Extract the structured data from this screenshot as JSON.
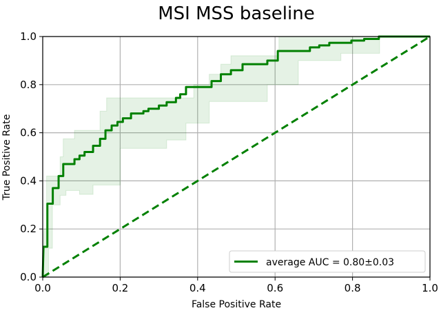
{
  "chart_data": {
    "type": "line",
    "title": "MSI MSS baseline",
    "xlabel": "False Positive Rate",
    "ylabel": "True Positive Rate",
    "xlim": [
      0,
      1
    ],
    "ylim": [
      0,
      1
    ],
    "xticks": [
      "0.0",
      "0.2",
      "0.4",
      "0.6",
      "0.8",
      "1.0"
    ],
    "yticks": [
      "0.0",
      "0.2",
      "0.4",
      "0.6",
      "0.8",
      "1.0"
    ],
    "grid": true,
    "legend": {
      "position": "bottom-right",
      "entries": [
        "average AUC = 0.80±0.03"
      ]
    },
    "colors": {
      "line": "#008000",
      "band": "#008000"
    },
    "series": [
      {
        "name": "average AUC = 0.80±0.03",
        "style": "solid",
        "x": [
          0,
          0.002,
          0.012,
          0.012,
          0.026,
          0.026,
          0.041,
          0.041,
          0.053,
          0.053,
          0.082,
          0.082,
          0.095,
          0.095,
          0.108,
          0.108,
          0.13,
          0.13,
          0.148,
          0.148,
          0.162,
          0.162,
          0.178,
          0.178,
          0.193,
          0.193,
          0.207,
          0.207,
          0.228,
          0.228,
          0.26,
          0.26,
          0.273,
          0.273,
          0.3,
          0.3,
          0.32,
          0.32,
          0.344,
          0.344,
          0.355,
          0.355,
          0.37,
          0.37,
          0.436,
          0.436,
          0.46,
          0.46,
          0.486,
          0.486,
          0.516,
          0.516,
          0.58,
          0.58,
          0.607,
          0.607,
          0.69,
          0.69,
          0.714,
          0.714,
          0.74,
          0.74,
          0.797,
          0.797,
          0.83,
          0.83,
          0.868,
          0.868,
          1.0
        ],
        "y": [
          0,
          0.126,
          0.126,
          0.305,
          0.305,
          0.37,
          0.37,
          0.42,
          0.42,
          0.47,
          0.47,
          0.49,
          0.49,
          0.505,
          0.505,
          0.52,
          0.52,
          0.546,
          0.546,
          0.575,
          0.575,
          0.61,
          0.61,
          0.63,
          0.63,
          0.645,
          0.645,
          0.66,
          0.66,
          0.68,
          0.68,
          0.69,
          0.69,
          0.7,
          0.7,
          0.713,
          0.713,
          0.727,
          0.727,
          0.745,
          0.745,
          0.76,
          0.76,
          0.79,
          0.79,
          0.815,
          0.815,
          0.843,
          0.843,
          0.86,
          0.86,
          0.885,
          0.885,
          0.9,
          0.9,
          0.94,
          0.94,
          0.955,
          0.955,
          0.963,
          0.963,
          0.974,
          0.974,
          0.983,
          0.983,
          0.99,
          0.99,
          1.0,
          1.0
        ]
      },
      {
        "name": "chance",
        "style": "dashed",
        "x": [
          0,
          1
        ],
        "y": [
          0,
          1
        ]
      }
    ],
    "band": {
      "upper": {
        "x": [
          0,
          0.003,
          0.01,
          0.01,
          0.045,
          0.045,
          0.053,
          0.053,
          0.082,
          0.082,
          0.148,
          0.148,
          0.165,
          0.165,
          0.38,
          0.39,
          0.39,
          0.43,
          0.43,
          0.46,
          0.46,
          0.486,
          0.486,
          0.61,
          0.61,
          1.0
        ],
        "y": [
          0,
          0.2,
          0.2,
          0.42,
          0.42,
          0.5,
          0.5,
          0.575,
          0.575,
          0.61,
          0.61,
          0.69,
          0.69,
          0.745,
          0.745,
          0.745,
          0.8,
          0.8,
          0.843,
          0.843,
          0.885,
          0.885,
          0.92,
          0.92,
          1.0,
          1.0
        ]
      },
      "lower": {
        "x": [
          0,
          0.01,
          0.015,
          0.015,
          0.025,
          0.025,
          0.045,
          0.045,
          0.06,
          0.06,
          0.095,
          0.095,
          0.13,
          0.13,
          0.2,
          0.2,
          0.32,
          0.32,
          0.37,
          0.37,
          0.43,
          0.43,
          0.58,
          0.58,
          0.66,
          0.66,
          0.77,
          0.77,
          0.87,
          0.87,
          1.0
        ],
        "y": [
          0,
          0,
          0,
          0.12,
          0.12,
          0.3,
          0.3,
          0.34,
          0.34,
          0.36,
          0.36,
          0.344,
          0.344,
          0.383,
          0.383,
          0.535,
          0.535,
          0.57,
          0.57,
          0.64,
          0.64,
          0.73,
          0.73,
          0.8,
          0.8,
          0.9,
          0.9,
          0.93,
          0.93,
          1.0,
          1.0
        ]
      }
    }
  }
}
